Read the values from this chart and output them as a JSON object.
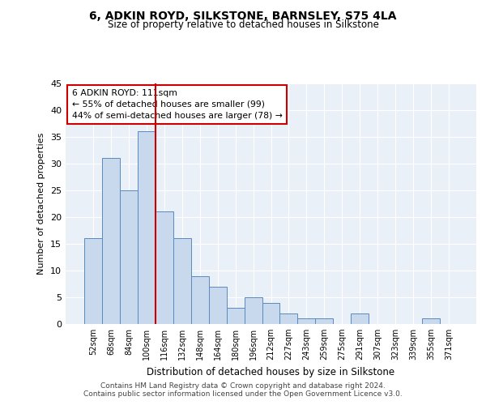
{
  "title": "6, ADKIN ROYD, SILKSTONE, BARNSLEY, S75 4LA",
  "subtitle": "Size of property relative to detached houses in Silkstone",
  "xlabel": "Distribution of detached houses by size in Silkstone",
  "ylabel": "Number of detached properties",
  "categories": [
    "52sqm",
    "68sqm",
    "84sqm",
    "100sqm",
    "116sqm",
    "132sqm",
    "148sqm",
    "164sqm",
    "180sqm",
    "196sqm",
    "212sqm",
    "227sqm",
    "243sqm",
    "259sqm",
    "275sqm",
    "291sqm",
    "307sqm",
    "323sqm",
    "339sqm",
    "355sqm",
    "371sqm"
  ],
  "values": [
    16,
    31,
    25,
    36,
    21,
    16,
    9,
    7,
    3,
    5,
    4,
    2,
    1,
    1,
    0,
    2,
    0,
    0,
    0,
    1,
    0
  ],
  "bar_color": "#c9d9ed",
  "bar_edge_color": "#5a8abf",
  "vline_x_index": 3.5,
  "vline_color": "#cc0000",
  "annotation_text": "6 ADKIN ROYD: 111sqm\n← 55% of detached houses are smaller (99)\n44% of semi-detached houses are larger (78) →",
  "annotation_box_color": "#ffffff",
  "annotation_box_edge_color": "#cc0000",
  "ylim": [
    0,
    45
  ],
  "yticks": [
    0,
    5,
    10,
    15,
    20,
    25,
    30,
    35,
    40,
    45
  ],
  "background_color": "#eaf0f8",
  "grid_color": "#ffffff",
  "footer_line1": "Contains HM Land Registry data © Crown copyright and database right 2024.",
  "footer_line2": "Contains public sector information licensed under the Open Government Licence v3.0."
}
